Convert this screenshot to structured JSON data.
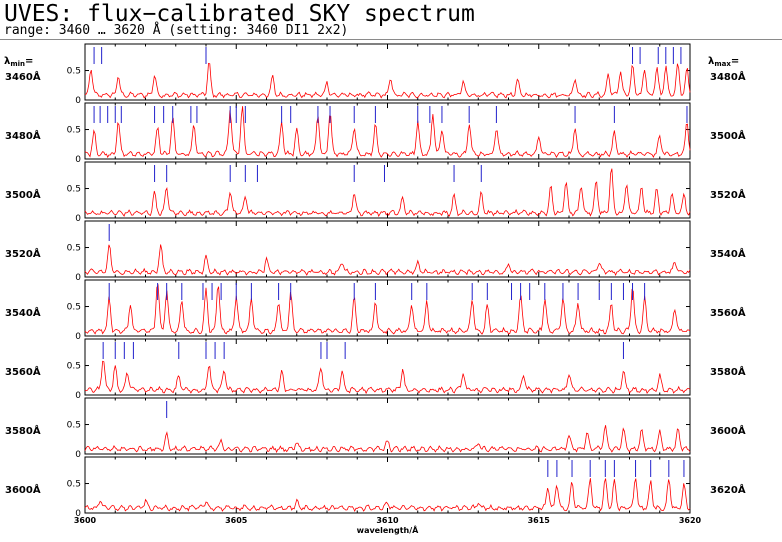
{
  "title": "UVES: flux−calibrated SKY spectrum",
  "subtitle": "range: 3460 … 3620 Å (setting: 3460 DI1 2x2)",
  "lambda_min_label": "λ",
  "lambda_min_sub": "min",
  "lambda_max_label": "λ",
  "lambda_max_sub": "max",
  "colors": {
    "spectrum": "#ff0000",
    "line_marker": "#2222cc",
    "frame": "#000000"
  },
  "chart_data": {
    "type": "line",
    "xlabel": "wavelength/Å",
    "x_ticks": [
      "3600",
      "3605",
      "3610",
      "3615",
      "3620"
    ],
    "y_ticks": [
      "0",
      "0.5"
    ],
    "ylim": [
      0,
      0.95
    ],
    "grid": false,
    "panels": [
      {
        "min": "3460Å",
        "max": "3480Å",
        "x_range": [
          3460,
          3480
        ],
        "ylim": [
          0,
          0.95
        ],
        "marker_height": "short",
        "markers": [
          3460.3,
          3460.55,
          3464.0,
          3478.1,
          3478.35,
          3478.95,
          3479.2,
          3479.45,
          3479.7
        ],
        "peaks": [
          [
            3460.2,
            0.45
          ],
          [
            3461.1,
            0.32
          ],
          [
            3462.3,
            0.35
          ],
          [
            3464.1,
            0.55
          ],
          [
            3466.2,
            0.3
          ],
          [
            3468.0,
            0.22
          ],
          [
            3470.1,
            0.28
          ],
          [
            3472.5,
            0.22
          ],
          [
            3474.3,
            0.25
          ],
          [
            3476.2,
            0.3
          ],
          [
            3477.3,
            0.35
          ],
          [
            3477.7,
            0.42
          ],
          [
            3478.1,
            0.5
          ],
          [
            3478.5,
            0.45
          ],
          [
            3478.9,
            0.48
          ],
          [
            3479.2,
            0.5
          ],
          [
            3479.6,
            0.52
          ],
          [
            3479.9,
            0.45
          ]
        ]
      },
      {
        "min": "3480Å",
        "max": "3500Å",
        "x_range": [
          3480,
          3500
        ],
        "ylim": [
          0,
          0.95
        ],
        "marker_height": "short",
        "markers": [
          3480.3,
          3480.5,
          3480.75,
          3481.0,
          3481.2,
          3482.3,
          3482.6,
          3482.9,
          3483.5,
          3483.7,
          3484.8,
          3485.0,
          3485.3,
          3486.5,
          3486.8,
          3487.7,
          3488.1,
          3488.9,
          3489.6,
          3491.0,
          3491.4,
          3491.8,
          3492.7,
          3493.6,
          3496.2,
          3497.5,
          3499.9
        ],
        "peaks": [
          [
            3480.3,
            0.4
          ],
          [
            3481.1,
            0.55
          ],
          [
            3482.4,
            0.45
          ],
          [
            3482.9,
            0.6
          ],
          [
            3483.6,
            0.5
          ],
          [
            3484.8,
            0.75
          ],
          [
            3485.2,
            0.8
          ],
          [
            3486.5,
            0.55
          ],
          [
            3487.0,
            0.4
          ],
          [
            3487.7,
            0.65
          ],
          [
            3488.1,
            0.7
          ],
          [
            3488.9,
            0.45
          ],
          [
            3489.6,
            0.5
          ],
          [
            3491.0,
            0.55
          ],
          [
            3491.5,
            0.7
          ],
          [
            3491.8,
            0.45
          ],
          [
            3492.7,
            0.55
          ],
          [
            3493.6,
            0.45
          ],
          [
            3495.0,
            0.3
          ],
          [
            3496.2,
            0.45
          ],
          [
            3497.5,
            0.35
          ],
          [
            3499.0,
            0.3
          ],
          [
            3499.9,
            0.55
          ]
        ]
      },
      {
        "min": "3500Å",
        "max": "3520Å",
        "x_range": [
          3500,
          3520
        ],
        "ylim": [
          0,
          0.95
        ],
        "marker_height": "short",
        "markers": [
          3502.3,
          3502.7,
          3504.8,
          3505.3,
          3505.7,
          3508.9,
          3509.9,
          3512.2,
          3513.1
        ],
        "peaks": [
          [
            3502.3,
            0.35
          ],
          [
            3502.7,
            0.45
          ],
          [
            3504.8,
            0.35
          ],
          [
            3505.3,
            0.3
          ],
          [
            3508.9,
            0.35
          ],
          [
            3510.5,
            0.25
          ],
          [
            3512.2,
            0.3
          ],
          [
            3513.1,
            0.35
          ],
          [
            3515.4,
            0.45
          ],
          [
            3515.9,
            0.55
          ],
          [
            3516.4,
            0.5
          ],
          [
            3516.9,
            0.55
          ],
          [
            3517.4,
            0.75
          ],
          [
            3517.9,
            0.5
          ],
          [
            3518.4,
            0.45
          ],
          [
            3518.9,
            0.4
          ],
          [
            3519.4,
            0.35
          ],
          [
            3519.8,
            0.3
          ]
        ]
      },
      {
        "min": "3520Å",
        "max": "3540Å",
        "x_range": [
          3520,
          3540
        ],
        "ylim": [
          0,
          0.95
        ],
        "marker_height": "short",
        "markers": [
          3520.8
        ],
        "peaks": [
          [
            3520.8,
            0.45
          ],
          [
            3522.5,
            0.45
          ],
          [
            3524.0,
            0.28
          ],
          [
            3526.0,
            0.2
          ],
          [
            3528.5,
            0.18
          ],
          [
            3531.0,
            0.15
          ],
          [
            3534.0,
            0.15
          ],
          [
            3537.0,
            0.18
          ],
          [
            3539.5,
            0.18
          ]
        ]
      },
      {
        "min": "3540Å",
        "max": "3560Å",
        "x_range": [
          3540,
          3560
        ],
        "ylim": [
          0,
          0.95
        ],
        "marker_height": "short",
        "markers": [
          3540.8,
          3542.4,
          3542.7,
          3543.2,
          3543.9,
          3544.2,
          3544.5,
          3545.0,
          3545.5,
          3546.4,
          3546.8,
          3548.9,
          3549.6,
          3550.8,
          3551.3,
          3552.8,
          3553.3,
          3554.1,
          3554.4,
          3554.7,
          3555.2,
          3555.8,
          3556.3,
          3557.0,
          3557.4,
          3557.8,
          3558.1,
          3558.5
        ],
        "peaks": [
          [
            3540.8,
            0.55
          ],
          [
            3541.5,
            0.45
          ],
          [
            3542.4,
            0.85
          ],
          [
            3542.7,
            0.7
          ],
          [
            3543.2,
            0.55
          ],
          [
            3544.0,
            0.7
          ],
          [
            3544.4,
            0.8
          ],
          [
            3545.0,
            0.6
          ],
          [
            3545.5,
            0.55
          ],
          [
            3546.4,
            0.5
          ],
          [
            3546.8,
            0.65
          ],
          [
            3548.9,
            0.55
          ],
          [
            3549.6,
            0.5
          ],
          [
            3550.8,
            0.45
          ],
          [
            3551.3,
            0.5
          ],
          [
            3552.8,
            0.55
          ],
          [
            3553.3,
            0.45
          ],
          [
            3554.4,
            0.6
          ],
          [
            3555.2,
            0.55
          ],
          [
            3555.8,
            0.55
          ],
          [
            3556.3,
            0.5
          ],
          [
            3557.4,
            0.45
          ],
          [
            3558.1,
            0.75
          ],
          [
            3558.5,
            0.55
          ],
          [
            3559.5,
            0.4
          ]
        ]
      },
      {
        "min": "3560Å",
        "max": "3580Å",
        "x_range": [
          3560,
          3580
        ],
        "ylim": [
          0,
          0.95
        ],
        "marker_height": "short",
        "markers": [
          3560.6,
          3561.0,
          3561.3,
          3561.6,
          3563.1,
          3564.0,
          3564.3,
          3564.6,
          3567.8,
          3568.0,
          3568.6,
          3577.8
        ],
        "peaks": [
          [
            3560.6,
            0.55
          ],
          [
            3561.0,
            0.4
          ],
          [
            3561.4,
            0.3
          ],
          [
            3563.1,
            0.25
          ],
          [
            3564.1,
            0.45
          ],
          [
            3564.6,
            0.35
          ],
          [
            3566.5,
            0.3
          ],
          [
            3567.8,
            0.4
          ],
          [
            3568.5,
            0.3
          ],
          [
            3570.5,
            0.35
          ],
          [
            3572.5,
            0.3
          ],
          [
            3574.5,
            0.25
          ],
          [
            3576.0,
            0.3
          ],
          [
            3577.8,
            0.35
          ],
          [
            3579.0,
            0.25
          ]
        ]
      },
      {
        "min": "3580Å",
        "max": "3600Å",
        "x_range": [
          3580,
          3600
        ],
        "ylim": [
          0,
          0.95
        ],
        "marker_height": "short",
        "markers": [
          3582.7
        ],
        "peaks": [
          [
            3582.7,
            0.25
          ],
          [
            3584.5,
            0.15
          ],
          [
            3587.0,
            0.12
          ],
          [
            3590.0,
            0.12
          ],
          [
            3593.0,
            0.12
          ],
          [
            3596.0,
            0.25
          ],
          [
            3596.6,
            0.3
          ],
          [
            3597.2,
            0.4
          ],
          [
            3597.8,
            0.35
          ],
          [
            3598.4,
            0.3
          ],
          [
            3599.0,
            0.3
          ],
          [
            3599.6,
            0.35
          ]
        ]
      },
      {
        "min": "3600Å",
        "max": "3620Å",
        "x_range": [
          3600,
          3620
        ],
        "ylim": [
          0,
          0.95
        ],
        "marker_height": "short",
        "markers": [
          3615.3,
          3615.6,
          3616.1,
          3616.7,
          3617.2,
          3617.5,
          3618.2,
          3618.7,
          3619.3,
          3619.8
        ],
        "peaks": [
          [
            3600.5,
            0.15
          ],
          [
            3602.0,
            0.12
          ],
          [
            3604.0,
            0.12
          ],
          [
            3607.0,
            0.1
          ],
          [
            3610.0,
            0.1
          ],
          [
            3613.0,
            0.1
          ],
          [
            3615.3,
            0.35
          ],
          [
            3615.6,
            0.4
          ],
          [
            3616.1,
            0.45
          ],
          [
            3616.7,
            0.5
          ],
          [
            3617.2,
            0.5
          ],
          [
            3617.5,
            0.45
          ],
          [
            3618.2,
            0.55
          ],
          [
            3618.7,
            0.45
          ],
          [
            3619.3,
            0.5
          ],
          [
            3619.8,
            0.4
          ]
        ]
      }
    ]
  }
}
